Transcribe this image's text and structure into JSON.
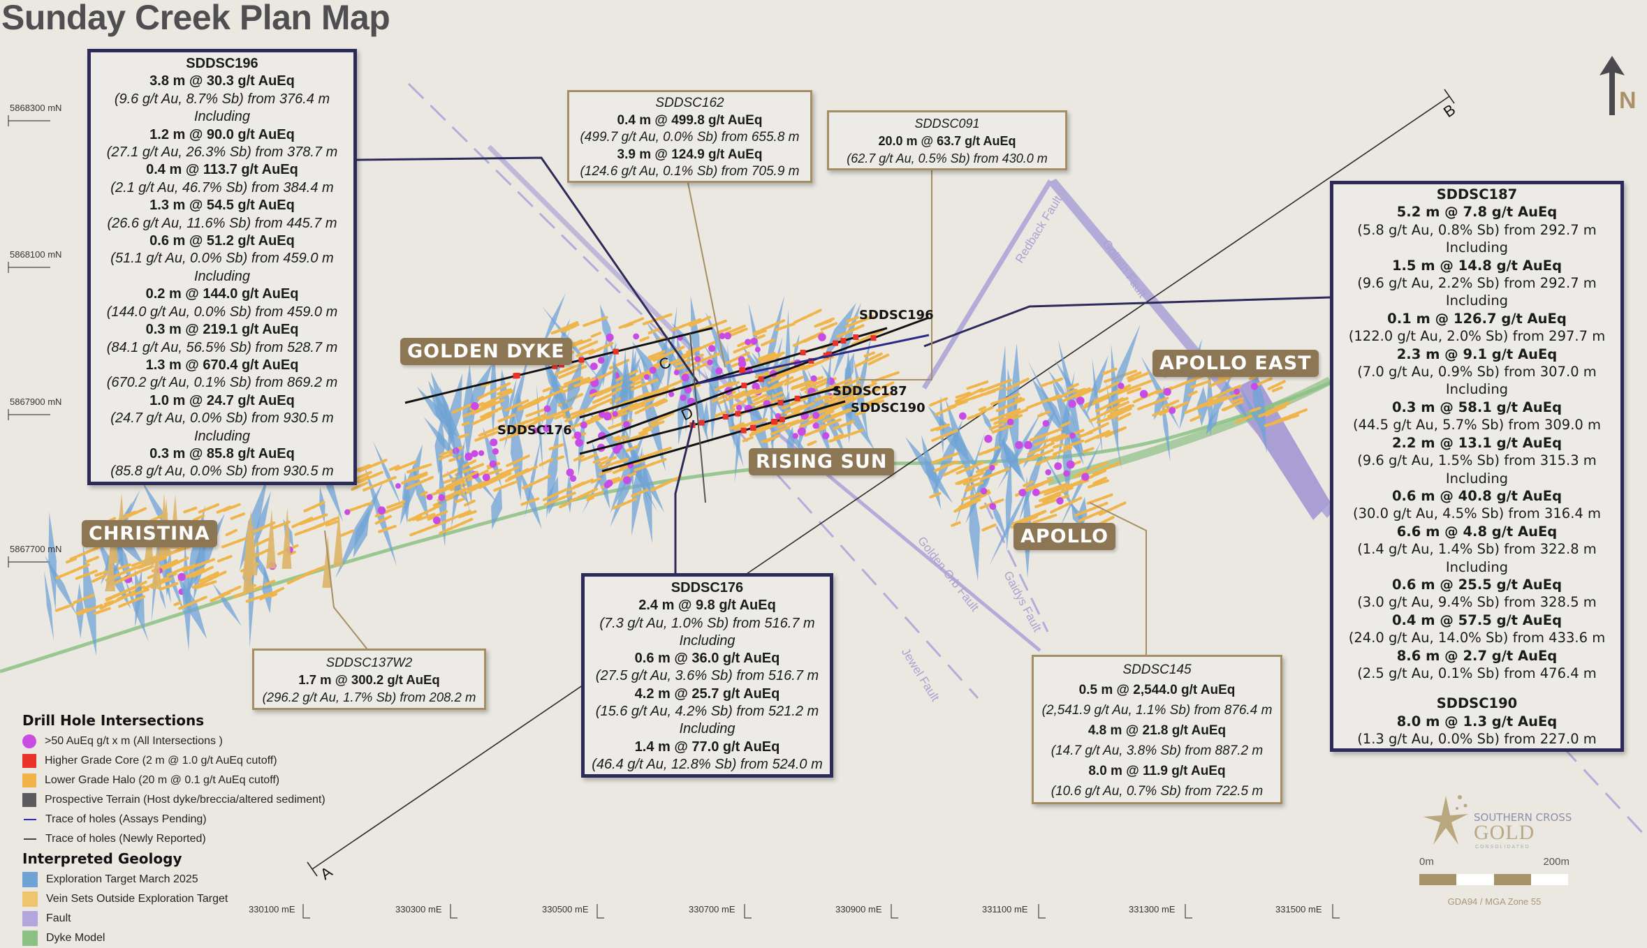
{
  "title": "Sunday Creek Plan Map",
  "colors": {
    "background": "#ebe8e2",
    "navy_box_border": "#2c2a58",
    "tan_box_border": "#a58e63",
    "area_label_bg": "#8d7653",
    "exploration_target": "#6fa3d6",
    "vein_sets": "#efb54a",
    "fault": "#b3acd9",
    "dyke": "#8cc084",
    "intersection_dot": "#c94be6",
    "higher_grade": "#e8322a",
    "prospective_terrain": "#5b5b5e"
  },
  "area_labels": {
    "golden_dyke": "GOLDEN DYKE",
    "christina": "CHRISTINA",
    "rising_sun": "RISING SUN",
    "apollo_east": "APOLLO EAST",
    "apollo": "APOLLO"
  },
  "northings": [
    "5868300 mN",
    "5868100 mN",
    "5867900 mN",
    "5867700 mN"
  ],
  "eastings": [
    "330100 mE",
    "330300 mE",
    "330500 mE",
    "330700 mE",
    "330900 mE",
    "331100 mE",
    "331300 mE",
    "331500 mE"
  ],
  "faults": [
    "Redback Fault",
    "Goliath Fault",
    "Golden Orb Fault",
    "Gaidys Fault",
    "Jewel Fault"
  ],
  "hole_labels": [
    "SDDSC196",
    "SDDSC187",
    "SDDSC190",
    "SDDSC176"
  ],
  "section_letters": [
    "A",
    "B",
    "C",
    "D"
  ],
  "north_label": "N",
  "boxes": [
    {
      "id": "SDDSC196",
      "lines": [
        {
          "t": "3.8 m @ 30.3 g/t AuEq",
          "s": "hd"
        },
        {
          "t": "(9.6 g/t Au, 8.7% Sb) from 376.4 m",
          "s": "sb"
        },
        {
          "t": "Including",
          "s": "inc"
        },
        {
          "t": "1.2 m @ 90.0 g/t AuEq",
          "s": "hd"
        },
        {
          "t": "(27.1 g/t Au, 26.3% Sb) from 378.7 m",
          "s": "sb"
        },
        {
          "t": "0.4 m @ 113.7 g/t AuEq",
          "s": "hd"
        },
        {
          "t": "(2.1 g/t Au, 46.7% Sb) from 384.4 m",
          "s": "sb"
        },
        {
          "t": "1.3 m @ 54.5 g/t AuEq",
          "s": "hd"
        },
        {
          "t": "(26.6 g/t Au, 11.6% Sb) from 445.7 m",
          "s": "sb"
        },
        {
          "t": "0.6 m @ 51.2 g/t AuEq",
          "s": "hd"
        },
        {
          "t": "(51.1 g/t Au, 0.0% Sb) from 459.0 m",
          "s": "sb"
        },
        {
          "t": "Including",
          "s": "inc"
        },
        {
          "t": "0.2 m @ 144.0 g/t AuEq",
          "s": "hd"
        },
        {
          "t": "(144.0 g/t Au, 0.0% Sb) from 459.0 m",
          "s": "sb"
        },
        {
          "t": "0.3 m @ 219.1 g/t AuEq",
          "s": "hd"
        },
        {
          "t": "(84.1 g/t Au, 56.5% Sb) from 528.7 m",
          "s": "sb"
        },
        {
          "t": "1.3 m @ 670.4 g/t AuEq",
          "s": "hd"
        },
        {
          "t": "(670.2 g/t Au, 0.1% Sb) from 869.2 m",
          "s": "sb"
        },
        {
          "t": "1.0 m @ 24.7 g/t AuEq",
          "s": "hd"
        },
        {
          "t": "(24.7 g/t Au, 0.0% Sb) from 930.5 m",
          "s": "sb"
        },
        {
          "t": "Including",
          "s": "inc"
        },
        {
          "t": "0.3 m @ 85.8 g/t AuEq",
          "s": "hd"
        },
        {
          "t": "(85.8 g/t Au, 0.0% Sb) from 930.5 m",
          "s": "sb"
        }
      ]
    },
    {
      "id": "SDDSC162",
      "lines": [
        {
          "t": "0.4 m @ 499.8 g/t AuEq",
          "s": "hd"
        },
        {
          "t": "(499.7 g/t Au, 0.0% Sb) from 655.8 m",
          "s": "sb"
        },
        {
          "t": "3.9 m @ 124.9 g/t AuEq",
          "s": "hd"
        },
        {
          "t": "(124.6 g/t Au, 0.1% Sb) from 705.9 m",
          "s": "sb"
        }
      ]
    },
    {
      "id": "SDDSC091",
      "lines": [
        {
          "t": "20.0 m @ 63.7 g/t AuEq",
          "s": "hd"
        },
        {
          "t": "(62.7 g/t Au, 0.5% Sb) from 430.0 m",
          "s": "sb"
        }
      ]
    },
    {
      "id": "SDDSC187",
      "lines": [
        {
          "t": "5.2 m @ 7.8 g/t AuEq",
          "s": "hd"
        },
        {
          "t": "(5.8 g/t Au, 0.8% Sb) from 292.7 m",
          "s": "sb"
        },
        {
          "t": "Including",
          "s": "inc"
        },
        {
          "t": "1.5 m @ 14.8 g/t AuEq",
          "s": "hd"
        },
        {
          "t": "(9.6 g/t Au, 2.2% Sb) from 292.7 m",
          "s": "sb"
        },
        {
          "t": "Including",
          "s": "inc"
        },
        {
          "t": "0.1 m @ 126.7 g/t AuEq",
          "s": "hd"
        },
        {
          "t": "(122.0 g/t Au, 2.0% Sb) from 297.7 m",
          "s": "sb"
        },
        {
          "t": "2.3 m @ 9.1 g/t AuEq",
          "s": "hd"
        },
        {
          "t": "(7.0 g/t Au, 0.9% Sb) from 307.0 m",
          "s": "sb"
        },
        {
          "t": "Including",
          "s": "inc"
        },
        {
          "t": "0.3 m @ 58.1 g/t AuEq",
          "s": "hd"
        },
        {
          "t": "(44.5 g/t Au, 5.7% Sb) from 309.0 m",
          "s": "sb"
        },
        {
          "t": "2.2 m @ 13.1 g/t AuEq",
          "s": "hd"
        },
        {
          "t": "(9.6 g/t Au, 1.5% Sb) from 315.3 m",
          "s": "sb"
        },
        {
          "t": "Including",
          "s": "inc"
        },
        {
          "t": "0.6 m @ 40.8 g/t AuEq",
          "s": "hd"
        },
        {
          "t": "(30.0 g/t Au, 4.5% Sb) from 316.4 m",
          "s": "sb"
        },
        {
          "t": "6.6 m @ 4.8 g/t AuEq",
          "s": "hd"
        },
        {
          "t": "(1.4 g/t Au, 1.4% Sb) from 322.8 m",
          "s": "sb"
        },
        {
          "t": "Including",
          "s": "inc"
        },
        {
          "t": "0.6 m @ 25.5 g/t AuEq",
          "s": "hd"
        },
        {
          "t": "(3.0 g/t Au, 9.4% Sb) from 328.5 m",
          "s": "sb"
        },
        {
          "t": "0.4 m @ 57.5 g/t AuEq",
          "s": "hd"
        },
        {
          "t": "(24.0 g/t Au, 14.0% Sb) from 433.6 m",
          "s": "sb"
        },
        {
          "t": "8.6 m @ 2.7 g/t AuEq",
          "s": "hd"
        },
        {
          "t": "(2.5 g/t Au, 0.1% Sb) from 476.4 m",
          "s": "sb"
        },
        {
          "t": "",
          "s": "blank"
        },
        {
          "t": "SDDSC190",
          "s": "hd"
        },
        {
          "t": "8.0 m @ 1.3 g/t AuEq",
          "s": "hd"
        },
        {
          "t": "(1.3 g/t Au, 0.0% Sb) from 227.0 m",
          "s": "sb"
        }
      ]
    },
    {
      "id": "SDDSC176",
      "lines": [
        {
          "t": "2.4 m @ 9.8 g/t AuEq",
          "s": "hd"
        },
        {
          "t": "(7.3 g/t Au, 1.0% Sb) from 516.7 m",
          "s": "sb"
        },
        {
          "t": "Including",
          "s": "inc"
        },
        {
          "t": "0.6 m @ 36.0 g/t AuEq",
          "s": "hd"
        },
        {
          "t": "(27.5 g/t Au, 3.6% Sb) from 516.7 m",
          "s": "sb"
        },
        {
          "t": "4.2 m @ 25.7 g/t AuEq",
          "s": "hd"
        },
        {
          "t": "(15.6 g/t Au, 4.2% Sb) from 521.2 m",
          "s": "sb"
        },
        {
          "t": "Including",
          "s": "inc"
        },
        {
          "t": "1.4 m @ 77.0 g/t AuEq",
          "s": "hd"
        },
        {
          "t": "(46.4 g/t Au, 12.8% Sb) from 524.0 m",
          "s": "sb"
        }
      ]
    },
    {
      "id": "SDDSC145",
      "lines": [
        {
          "t": "0.5 m @ 2,544.0 g/t AuEq",
          "s": "hd"
        },
        {
          "t": "(2,541.9 g/t Au, 1.1% Sb) from 876.4 m",
          "s": "sb"
        },
        {
          "t": "4.8 m @ 21.8 g/t AuEq",
          "s": "hd"
        },
        {
          "t": "(14.7 g/t Au, 3.8% Sb) from 887.2 m",
          "s": "sb"
        },
        {
          "t": "8.0 m @ 11.9 g/t AuEq",
          "s": "hd"
        },
        {
          "t": "(10.6 g/t Au, 0.7% Sb) from 722.5 m",
          "s": "sb"
        }
      ]
    },
    {
      "id": "SDDSC137W2",
      "lines": [
        {
          "t": "1.7 m @ 300.2 g/t AuEq",
          "s": "hd"
        },
        {
          "t": "(296.2 g/t Au, 1.7% Sb) from 208.2 m",
          "s": "sb"
        }
      ]
    }
  ],
  "legend": {
    "drill_heading": "Drill Hole Intersections",
    "drill_items": [
      {
        "label": ">50 AuEq g/t x m (All Intersections )",
        "symbol": "dot",
        "color": "#c94be6"
      },
      {
        "label": "Higher Grade Core (2 m @ 1.0 g/t AuEq cutoff)",
        "symbol": "square",
        "color": "#e8322a"
      },
      {
        "label": "Lower Grade Halo (20 m @ 0.1 g/t AuEq cutoff)",
        "symbol": "square",
        "color": "#f0b347"
      },
      {
        "label": "Prospective Terrain (Host dyke/breccia/altered sediment)",
        "symbol": "square",
        "color": "#5b5b5e"
      },
      {
        "label": "Trace of holes (Assays Pending)",
        "symbol": "line",
        "color": "#2a2ad0"
      },
      {
        "label": "Trace of holes (Newly Reported)",
        "symbol": "line",
        "color": "#444444"
      }
    ],
    "geology_heading": "Interpreted Geology",
    "geology_items": [
      {
        "label": "Exploration Target March 2025",
        "color": "#6fa3d6"
      },
      {
        "label": "Vein Sets Outside Exploration Target",
        "color": "#efc46e"
      },
      {
        "label": "Fault",
        "color": "#b3a6dc"
      },
      {
        "label": "Dyke Model",
        "color": "#8cc084"
      }
    ]
  },
  "logo": {
    "line1": "SOUTHERN CROSS",
    "line2": "GOLD",
    "line3": "CONSOLIDATED"
  },
  "scale_bar": {
    "start": "0m",
    "end": "200m",
    "crs": "GDA94 / MGA Zone 55"
  }
}
